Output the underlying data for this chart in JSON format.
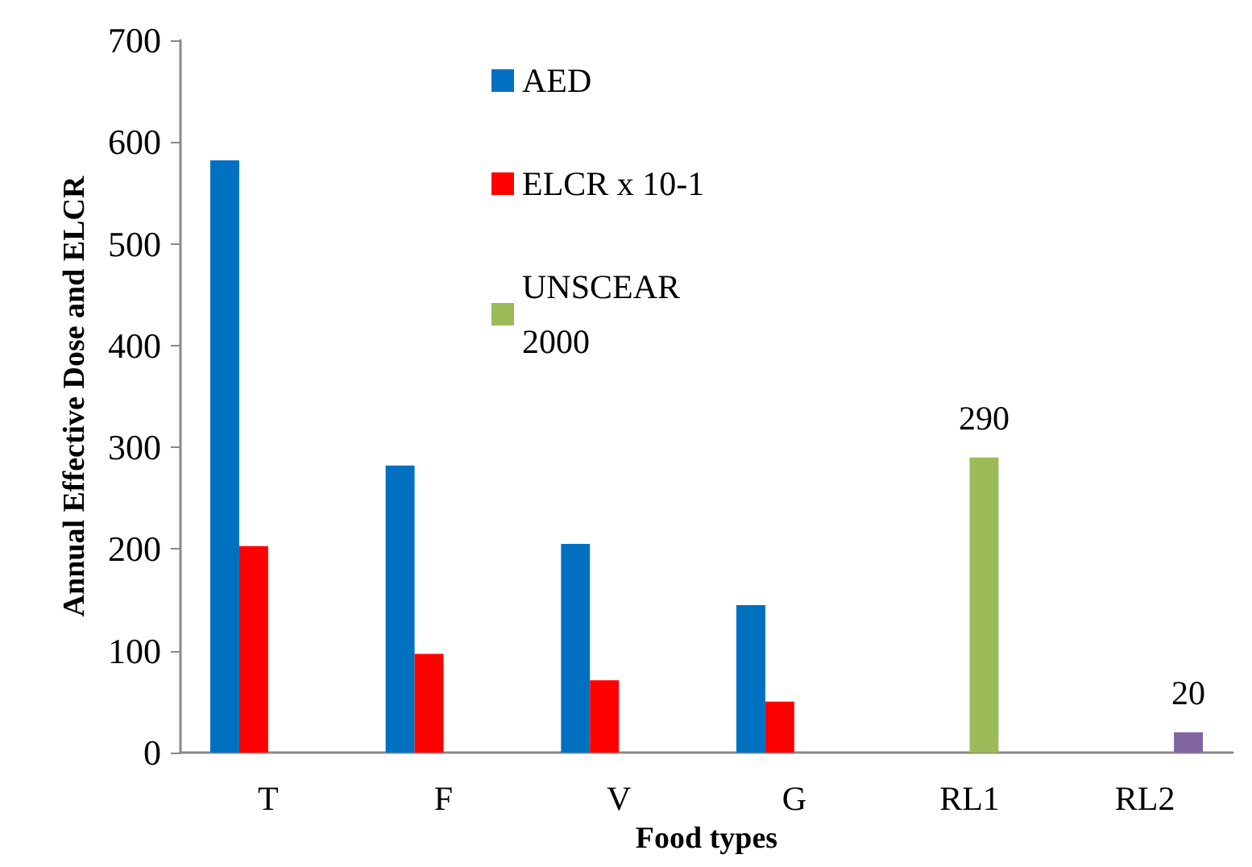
{
  "chart_data": {
    "type": "bar",
    "xlabel": "Food types",
    "ylabel": "Annual Effective Dose and ELCR",
    "categories": [
      "T",
      "F",
      "V",
      "G",
      "RL1",
      "RL2"
    ],
    "series": [
      {
        "name": "AED",
        "color": "#0070c0",
        "values": [
          582,
          282,
          205,
          145,
          null,
          null
        ]
      },
      {
        "name": "ELCR x 10-1",
        "color": "#ff0000",
        "values": [
          203,
          97,
          71,
          50,
          null,
          null
        ]
      },
      {
        "name": "UNSCEAR 2000",
        "color": "#9bbb59",
        "values": [
          null,
          null,
          null,
          null,
          290,
          null
        ],
        "value_labels": [
          null,
          null,
          null,
          null,
          "290",
          null
        ]
      },
      {
        "color": "#8064a2",
        "values": [
          null,
          null,
          null,
          null,
          null,
          20
        ],
        "value_labels": [
          null,
          null,
          null,
          null,
          null,
          "20"
        ]
      }
    ],
    "ylim": [
      0,
      700
    ],
    "yticks": [
      0,
      100,
      200,
      300,
      400,
      500,
      600,
      700
    ],
    "grid": false,
    "legend": "top"
  }
}
